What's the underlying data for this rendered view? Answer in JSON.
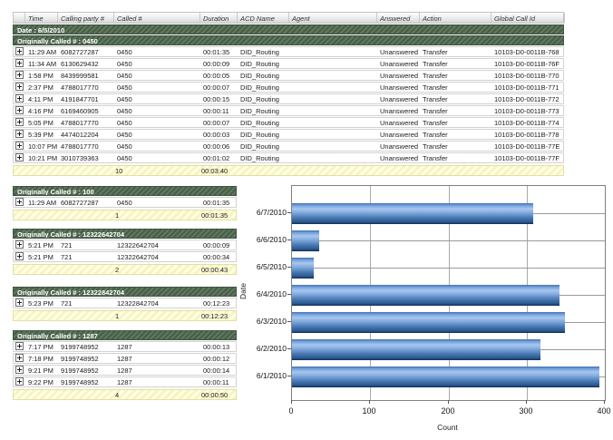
{
  "report": {
    "date_header": "Date : 6/5/2010",
    "columns": [
      {
        "key": "expand",
        "label": ""
      },
      {
        "key": "time",
        "label": "Time"
      },
      {
        "key": "calling_party",
        "label": "Calling party #"
      },
      {
        "key": "called",
        "label": "Called #"
      },
      {
        "key": "duration",
        "label": "Duration"
      },
      {
        "key": "acd_name",
        "label": "ACD Name"
      },
      {
        "key": "agent",
        "label": "Agent"
      },
      {
        "key": "answered",
        "label": "Answered"
      },
      {
        "key": "action",
        "label": "Action"
      },
      {
        "key": "global_call_id",
        "label": "Global Call Id"
      }
    ],
    "groups": [
      {
        "header": "Originally Called # : 0450",
        "wide": true,
        "rows": [
          {
            "time": "11:29 AM",
            "calling_party": "6082727287",
            "called": "0450",
            "duration": "00:01:35",
            "acd_name": "DID_Routing",
            "agent": "",
            "answered": "Unanswered",
            "action": "Transfer",
            "global_call_id": "10103-D0-0011B-768"
          },
          {
            "time": "11:34 AM",
            "calling_party": "6130629432",
            "called": "0450",
            "duration": "00:00:09",
            "acd_name": "DID_Routing",
            "agent": "",
            "answered": "Unanswered",
            "action": "Transfer",
            "global_call_id": "10103-D0-0011B-76F"
          },
          {
            "time": "1:58 PM",
            "calling_party": "8439999581",
            "called": "0450",
            "duration": "00:00:05",
            "acd_name": "DID_Routing",
            "agent": "",
            "answered": "Unanswered",
            "action": "Transfer",
            "global_call_id": "10103-D0-0011B-770"
          },
          {
            "time": "2:37 PM",
            "calling_party": "4788017770",
            "called": "0450",
            "duration": "00:00:07",
            "acd_name": "DID_Routing",
            "agent": "",
            "answered": "Unanswered",
            "action": "Transfer",
            "global_call_id": "10103-D0-0011B-771"
          },
          {
            "time": "4:11 PM",
            "calling_party": "4191847701",
            "called": "0450",
            "duration": "00:00:15",
            "acd_name": "DID_Routing",
            "agent": "",
            "answered": "Unanswered",
            "action": "Transfer",
            "global_call_id": "10103-D0-0011B-772"
          },
          {
            "time": "4:16 PM",
            "calling_party": "6169460905",
            "called": "0450",
            "duration": "00:00:11",
            "acd_name": "DID_Routing",
            "agent": "",
            "answered": "Unanswered",
            "action": "Transfer",
            "global_call_id": "10103-D0-0011B-773"
          },
          {
            "time": "5:05 PM",
            "calling_party": "4788017770",
            "called": "0450",
            "duration": "00:00:07",
            "acd_name": "DID_Routing",
            "agent": "",
            "answered": "Unanswered",
            "action": "Transfer",
            "global_call_id": "10103-D0-0011B-774"
          },
          {
            "time": "5:39 PM",
            "calling_party": "4474012204",
            "called": "0450",
            "duration": "00:00:03",
            "acd_name": "DID_Routing",
            "agent": "",
            "answered": "Unanswered",
            "action": "Transfer",
            "global_call_id": "10103-D0-0011B-778"
          },
          {
            "time": "10:07 PM",
            "calling_party": "4788017770",
            "called": "0450",
            "duration": "00:00:06",
            "acd_name": "DID_Routing",
            "agent": "",
            "answered": "Unanswered",
            "action": "Transfer",
            "global_call_id": "10103-D0-0011B-77E"
          },
          {
            "time": "10:21 PM",
            "calling_party": "3010739363",
            "called": "0450",
            "duration": "00:01:02",
            "acd_name": "DID_Routing",
            "agent": "",
            "answered": "Unanswered",
            "action": "Transfer",
            "global_call_id": "10103-D0-0011B-77F"
          }
        ],
        "summary": {
          "count": "10",
          "total_duration": "00:03:40"
        }
      },
      {
        "header": "Originally Called # : 100",
        "wide": false,
        "rows": [
          {
            "time": "11:29 AM",
            "calling_party": "6082727287",
            "called": "0450",
            "duration": "00:01:35"
          }
        ],
        "summary": {
          "count": "1",
          "total_duration": "00:01:35"
        }
      },
      {
        "header": "Originally Called # : 12322642704",
        "wide": false,
        "rows": [
          {
            "time": "5:21 PM",
            "calling_party": "721",
            "called": "12322642704",
            "duration": "00:00:09"
          },
          {
            "time": "5:21 PM",
            "calling_party": "721",
            "called": "12322642704",
            "duration": "00:00:34"
          }
        ],
        "summary": {
          "count": "2",
          "total_duration": "00:00:43"
        }
      },
      {
        "header": "Originally Called # : 12322842704",
        "wide": false,
        "rows": [
          {
            "time": "5:23 PM",
            "calling_party": "721",
            "called": "12322842704",
            "duration": "00:12:23"
          }
        ],
        "summary": {
          "count": "1",
          "total_duration": "00:12:23"
        }
      },
      {
        "header": "Originally Called # : 1287",
        "wide": false,
        "rows": [
          {
            "time": "7:17 PM",
            "calling_party": "9199748952",
            "called": "1287",
            "duration": "00:00:13"
          },
          {
            "time": "7:18 PM",
            "calling_party": "9199748952",
            "called": "1287",
            "duration": "00:00:12"
          },
          {
            "time": "9:21 PM",
            "calling_party": "9199748952",
            "called": "1287",
            "duration": "00:00:14"
          },
          {
            "time": "9:22 PM",
            "calling_party": "9199748952",
            "called": "1287",
            "duration": "00:00:11"
          }
        ],
        "summary": {
          "count": "4",
          "total_duration": "00:00:50"
        }
      }
    ]
  },
  "chart_data": {
    "type": "bar",
    "orientation": "horizontal",
    "categories": [
      "6/7/2010",
      "6/6/2010",
      "6/5/2010",
      "6/4/2010",
      "6/3/2010",
      "6/2/2010",
      "6/1/2010"
    ],
    "values": [
      308,
      35,
      28,
      342,
      349,
      318,
      393
    ],
    "title": "",
    "xlabel": "Count",
    "ylabel": "Date",
    "xlim": [
      0,
      400
    ],
    "xticks": [
      0,
      100,
      200,
      300,
      400
    ],
    "grid": true,
    "legend": "none",
    "bar_color": "#5e90c7"
  },
  "colors": {
    "group_bar_green": "#4e684e",
    "summary_yellow": "#ffffcf",
    "bar_blue": "#5e90c7",
    "frame_gray": "#808080"
  }
}
